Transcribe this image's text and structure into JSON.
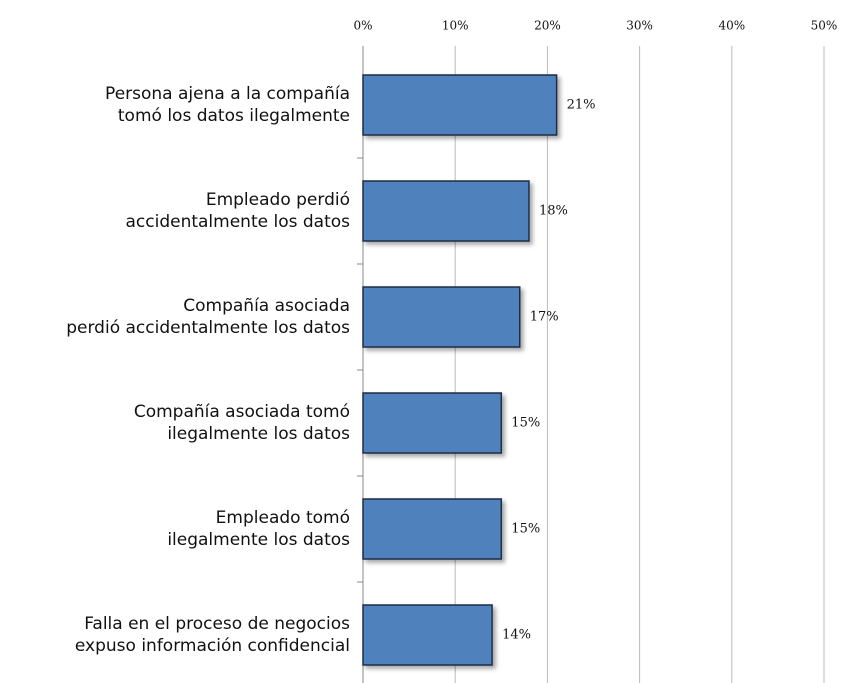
{
  "chart_data": {
    "type": "hbar",
    "categories": [
      "Persona ajena a la compañía\ntomó los datos ilegalmente",
      "Empleado perdió\naccidentalmente los datos",
      "Compañía asociada\nperdió accidentalmente los datos",
      "Compañía asociada tomó\nilegalmente los datos",
      "Empleado tomó\nilegalmente los datos",
      "Falla en el proceso de negocios\nexpuso información confidencial"
    ],
    "values": [
      21,
      18,
      17,
      15,
      15,
      14
    ],
    "value_labels": [
      "21%",
      "18%",
      "17%",
      "15%",
      "15%",
      "14%"
    ],
    "color": "#4f81bd",
    "xlim": [
      0,
      50
    ],
    "xticks": [
      {
        "value": 0,
        "label": "0%"
      },
      {
        "value": 10,
        "label": "10%"
      },
      {
        "value": 20,
        "label": "20%"
      },
      {
        "value": 30,
        "label": "30%"
      },
      {
        "value": 40,
        "label": "40%"
      },
      {
        "value": 50,
        "label": "50%"
      }
    ],
    "grid": true
  }
}
